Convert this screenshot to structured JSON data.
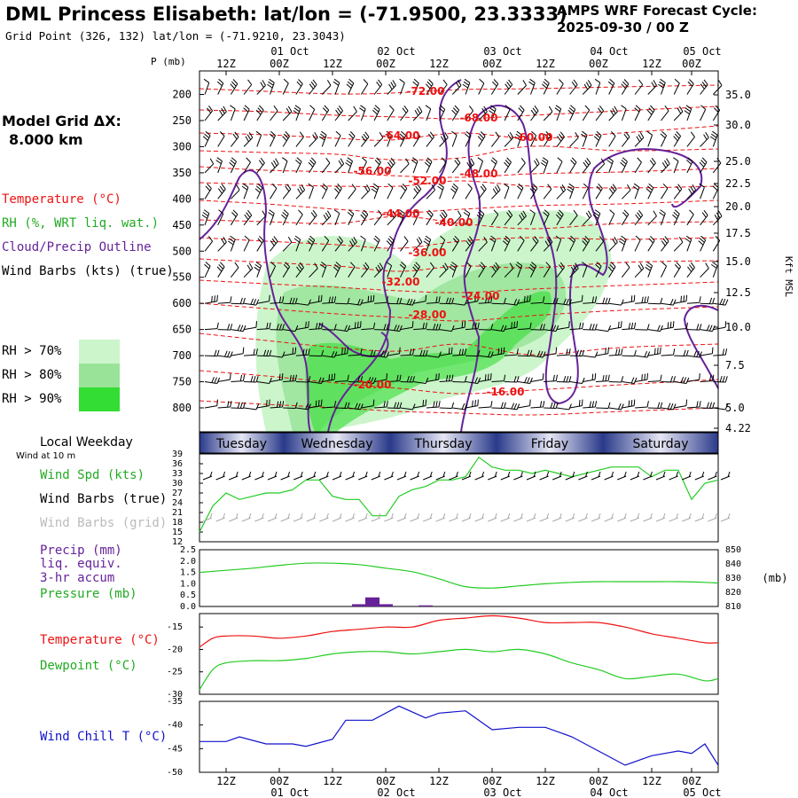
{
  "header": {
    "title": "DML Princess Elisabeth:  lat/lon = (-71.9500, 23.3333)",
    "grid_point": "Grid Point (326, 132) lat/lon = (-71.9210, 23.3043)",
    "cycle_title": "AMPS WRF Forecast Cycle:",
    "cycle_value": "2025-09-30 / 00  Z"
  },
  "left_panel": {
    "model_grid_label": "Model Grid ΔX:",
    "model_grid_value": "8.000 km",
    "legend_temperature": "Temperature (°C)",
    "legend_rh": "RH (%, WRT liq. wat.)",
    "legend_cloud": "Cloud/Precip Outline",
    "legend_wind": "Wind Barbs (kts) (true)",
    "rh_bins": [
      {
        "label": "RH > 70%",
        "color": "#ccf5cc"
      },
      {
        "label": "RH > 80%",
        "color": "#99e399"
      },
      {
        "label": "RH > 90%",
        "color": "#33dd33"
      }
    ]
  },
  "colors": {
    "temperature": "#ee1111",
    "dewpoint": "#22cc22",
    "cloud": "#662299",
    "wind_chill": "#1111cc",
    "precip": "#662299",
    "pressure": "#22cc22",
    "day_bar_dark": "#2a3a8a",
    "day_bar_light": "#e6e6f4"
  },
  "time_axis": {
    "top_tick_labels": [
      "12Z",
      "00Z",
      "12Z",
      "00Z",
      "12Z",
      "00Z",
      "12Z",
      "00Z",
      "12Z",
      "00Z"
    ],
    "top_date_labels": [
      "01 Oct",
      "02 Oct",
      "03 Oct",
      "04 Oct",
      "05 Oct"
    ],
    "bottom_tick_labels": [
      "12Z",
      "00Z",
      "12Z",
      "00Z",
      "12Z",
      "00Z",
      "12Z",
      "00Z",
      "12Z",
      "00Z"
    ],
    "bottom_date_labels": [
      "01 Oct",
      "02 Oct",
      "03 Oct",
      "04 Oct",
      "05 Oct"
    ],
    "weekday_title": "Local Weekday",
    "weekdays": [
      "Tuesday",
      "Wednesday",
      "Thursday",
      "Friday",
      "Saturday"
    ]
  },
  "chart_data": [
    {
      "type": "heatmap",
      "panel": "cross-section",
      "ylabel_left": "P (mb)",
      "ylabel_right": "Kft MSL",
      "pressure_ticks": [
        200,
        250,
        300,
        350,
        400,
        450,
        500,
        550,
        600,
        650,
        700,
        750,
        800
      ],
      "height_ticks": [
        "35.0",
        "30.0",
        "25.0",
        "22.5",
        "20.0",
        "17.5",
        "15.0",
        "12.5",
        "10.0",
        "7.5",
        "5.0",
        "4.22"
      ],
      "temperature_contour_labels": [
        "-72.00",
        "-68.00",
        "-64.00",
        "-60.00",
        "-56.00",
        "-52.00",
        "-48.00",
        "-44.00",
        "-40.00",
        "-36.00",
        "-32.00",
        "-28.00",
        "-24.00",
        "-20.00",
        "-16.00"
      ]
    },
    {
      "type": "line",
      "panel": "wind",
      "legend_title": "Wind at 10 m",
      "series_labels": [
        "Wind Spd (kts)",
        "Wind Barbs (true)",
        "Wind Barbs (grid)"
      ],
      "y_ticks": [
        12,
        15,
        18,
        21,
        24,
        27,
        30,
        33,
        36,
        39
      ],
      "ylim": [
        12,
        39
      ],
      "x_hours": [
        0,
        3,
        6,
        9,
        12,
        15,
        18,
        21,
        24,
        27,
        30,
        33,
        36,
        39,
        42,
        45,
        48,
        51,
        54,
        57,
        60,
        63,
        66,
        69,
        72,
        75,
        78,
        81,
        84,
        87,
        90,
        93,
        96,
        99,
        102,
        105,
        108,
        111,
        114,
        117
      ],
      "series": [
        {
          "name": "Wind Spd (kts)",
          "values": [
            15,
            23,
            27,
            25,
            26,
            27,
            27,
            28,
            31,
            31,
            26,
            25,
            25,
            20,
            20,
            26,
            28,
            29,
            31,
            31,
            32,
            38,
            35,
            34,
            34,
            33,
            34,
            33,
            32,
            33,
            34,
            35,
            35,
            35,
            32,
            34,
            34,
            25,
            30,
            31
          ]
        }
      ]
    },
    {
      "type": "line",
      "panel": "precip-pressure",
      "series_labels": [
        "Precip (mm)",
        "liq. equiv.",
        "3-hr accum",
        "Pressure (mb)"
      ],
      "y_ticks_left": [
        "0.0",
        "0.5",
        "1.0",
        "1.5",
        "2.0",
        "2.5"
      ],
      "y_ticks_right": [
        810,
        820,
        830,
        840,
        850
      ],
      "ylim_left": [
        0,
        2.5
      ],
      "ylim_right": [
        810,
        850
      ],
      "ylabel_right": "(mb)",
      "x_hours": [
        0,
        6,
        12,
        18,
        24,
        30,
        36,
        42,
        48,
        54,
        60,
        66,
        72,
        78,
        84,
        90,
        96,
        102,
        108,
        114,
        117
      ],
      "series": [
        {
          "name": "Pressure (mb)",
          "values": [
            834,
            835.5,
            837,
            839,
            840.5,
            840.5,
            839.5,
            837,
            834.5,
            829.5,
            824,
            823,
            824.5,
            826,
            827,
            827.5,
            827.5,
            827.5,
            827.5,
            827,
            826.5
          ]
        },
        {
          "name": "Precip (mm)",
          "bars": [
            [
              36,
              0.1
            ],
            [
              39,
              0.4
            ],
            [
              42,
              0.1
            ],
            [
              51,
              0.05
            ]
          ]
        }
      ]
    },
    {
      "type": "line",
      "panel": "temperature",
      "series_labels": [
        "Temperature (°C)",
        "Dewpoint (°C)"
      ],
      "y_ticks": [
        -30,
        -25,
        -20,
        -15
      ],
      "ylim": [
        -30,
        -12
      ],
      "x_hours": [
        0,
        3,
        6,
        12,
        18,
        24,
        30,
        36,
        42,
        48,
        54,
        60,
        66,
        72,
        78,
        84,
        90,
        96,
        102,
        108,
        114,
        117
      ],
      "series": [
        {
          "name": "Temperature (°C)",
          "values": [
            -19.5,
            -17.5,
            -17,
            -17,
            -17.5,
            -17,
            -16,
            -15.5,
            -15,
            -15,
            -13.5,
            -13,
            -12.5,
            -13,
            -14,
            -14,
            -14,
            -15,
            -16.5,
            -17.5,
            -18.5,
            -18.5
          ]
        },
        {
          "name": "Dewpoint (°C)",
          "values": [
            -29,
            -24.5,
            -23,
            -22.5,
            -22.5,
            -22,
            -21,
            -20.5,
            -20.5,
            -21,
            -20.5,
            -20,
            -20.5,
            -20,
            -21,
            -23,
            -24.5,
            -26.5,
            -26,
            -25.5,
            -27,
            -26.5
          ]
        }
      ]
    },
    {
      "type": "line",
      "panel": "wind-chill",
      "series_labels": [
        "Wind Chill T (°C)"
      ],
      "y_ticks": [
        -50,
        -45,
        -40,
        -35
      ],
      "ylim": [
        -50,
        -35
      ],
      "x_hours": [
        0,
        6,
        9,
        15,
        21,
        24,
        30,
        33,
        39,
        45,
        51,
        54,
        60,
        66,
        72,
        78,
        84,
        90,
        96,
        102,
        108,
        111,
        114,
        117
      ],
      "series": [
        {
          "name": "Wind Chill T (°C)",
          "values": [
            -43.5,
            -43.5,
            -42.5,
            -44,
            -44,
            -44.5,
            -43,
            -39,
            -39,
            -36,
            -38.5,
            -37.5,
            -37,
            -41,
            -40.5,
            -40.5,
            -42.5,
            -45.5,
            -48.5,
            -46.5,
            -45.5,
            -46,
            -44,
            -48.5
          ]
        }
      ]
    }
  ]
}
